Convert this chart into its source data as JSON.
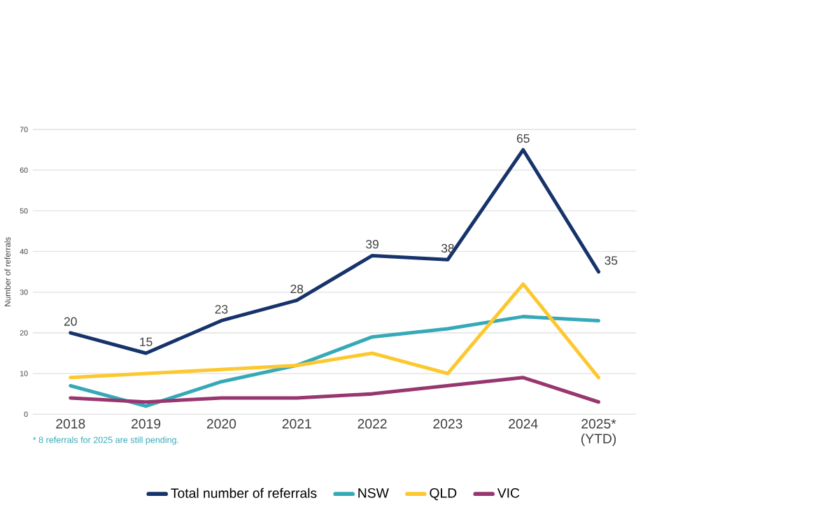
{
  "chart_data": {
    "type": "line",
    "ylabel": "Number of referrals",
    "categories": [
      "2018",
      "2019",
      "2020",
      "2021",
      "2022",
      "2023",
      "2024",
      "2025* (YTD)"
    ],
    "series": [
      {
        "name": "Total number of referrals",
        "color": "#17336b",
        "values": [
          20,
          15,
          23,
          28,
          39,
          38,
          65,
          35
        ],
        "value_labels": [
          "20",
          "15",
          "23",
          "28",
          "39",
          "38",
          "65",
          "35"
        ]
      },
      {
        "name": "NSW",
        "color": "#36a9b8",
        "values": [
          7,
          2,
          8,
          12,
          19,
          21,
          24,
          23
        ]
      },
      {
        "name": "QLD",
        "color": "#fdc82f",
        "values": [
          9,
          10,
          11,
          12,
          15,
          10,
          32,
          9
        ]
      },
      {
        "name": "VIC",
        "color": "#98366f",
        "values": [
          4,
          3,
          4,
          4,
          5,
          7,
          9,
          3
        ]
      }
    ],
    "ylim": [
      0,
      70
    ],
    "yticks": [
      0,
      10,
      20,
      30,
      40,
      50,
      60,
      70
    ],
    "grid": "y",
    "legend": "bottom",
    "marker": "none",
    "line_style": "solid",
    "annotations": [
      "* 8 referrals for 2025 are still pending."
    ]
  }
}
